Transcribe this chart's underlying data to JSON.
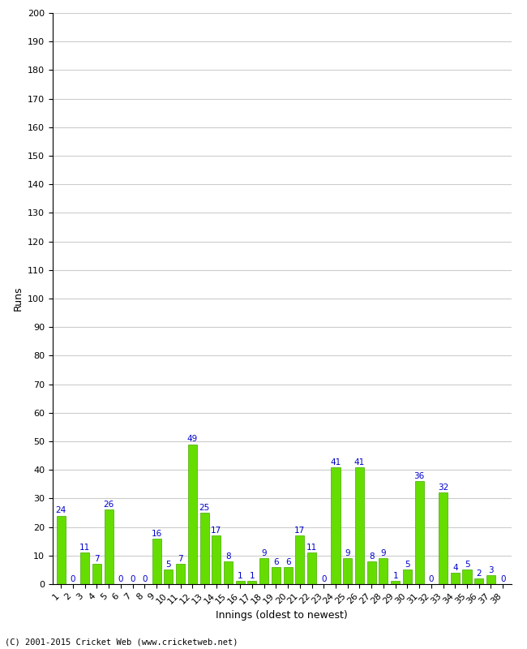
{
  "innings": [
    1,
    2,
    3,
    4,
    5,
    6,
    7,
    8,
    9,
    10,
    11,
    12,
    13,
    14,
    15,
    16,
    17,
    18,
    19,
    20,
    21,
    22,
    23,
    24,
    25,
    26,
    27,
    28,
    29,
    30,
    31,
    32,
    33,
    34,
    35,
    36,
    37,
    38
  ],
  "runs": [
    24,
    0,
    11,
    7,
    26,
    0,
    0,
    0,
    16,
    5,
    7,
    49,
    25,
    17,
    8,
    1,
    1,
    9,
    6,
    6,
    17,
    11,
    0,
    41,
    9,
    41,
    8,
    9,
    1,
    5,
    36,
    0,
    32,
    4,
    5,
    2,
    3,
    0
  ],
  "bar_color": "#66dd00",
  "bar_edge_color": "#44aa00",
  "label_color": "#0000cc",
  "ylabel": "Runs",
  "xlabel": "Innings (oldest to newest)",
  "footer": "(C) 2001-2015 Cricket Web (www.cricketweb.net)",
  "ylim": [
    0,
    200
  ],
  "yticks": [
    0,
    10,
    20,
    30,
    40,
    50,
    60,
    70,
    80,
    90,
    100,
    110,
    120,
    130,
    140,
    150,
    160,
    170,
    180,
    190,
    200
  ],
  "background_color": "#ffffff",
  "grid_color": "#cccccc",
  "label_fontsize": 7.5,
  "axis_fontsize": 9,
  "tick_fontsize": 8,
  "footer_fontsize": 7.5
}
